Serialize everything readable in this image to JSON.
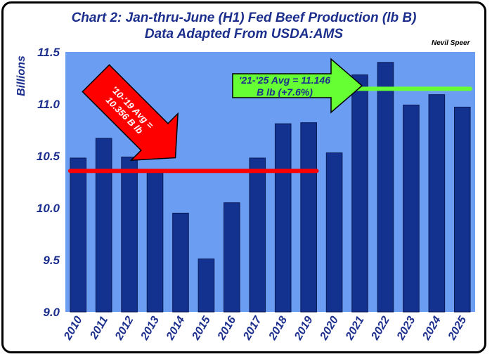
{
  "chart_data": {
    "type": "bar",
    "title_line1": "Chart 2: Jan-thru-June (H1) Fed Beef Production (lb B)",
    "title_line2": "Data Adapted From USDA:AMS",
    "credit": "Nevil Speer",
    "ylabel": "Billions",
    "ylim": [
      9.0,
      11.5
    ],
    "yticks": [
      "9.0",
      "9.5",
      "10.0",
      "10.5",
      "11.0",
      "11.5"
    ],
    "categories": [
      "2010",
      "2011",
      "2012",
      "2013",
      "2014",
      "2015",
      "2016",
      "2017",
      "2018",
      "2019",
      "2020",
      "2021",
      "2022",
      "2023",
      "2024",
      "2025"
    ],
    "values": [
      10.48,
      10.67,
      10.49,
      10.34,
      9.95,
      9.51,
      10.05,
      10.48,
      10.81,
      10.82,
      10.53,
      11.28,
      11.4,
      10.99,
      11.09,
      10.97
    ],
    "grid": false,
    "bar_color": "#13328f",
    "plot_background": "#6b9df2",
    "annotations": [
      {
        "name": "avg-2010-2019",
        "lines": [
          "'10-'19 Avg =",
          "10.356 B lb"
        ],
        "value": 10.356,
        "from": "2010",
        "to": "2019",
        "line_color": "#ff0000",
        "arrow_color": "#ff0000"
      },
      {
        "name": "avg-2021-2025",
        "lines": [
          "'21-'25 Avg = 11.146",
          "B lb (+7.6%)"
        ],
        "value": 11.146,
        "from": "2021",
        "to": "2025",
        "line_color": "#66ff33",
        "arrow_color": "#66ff33"
      }
    ]
  }
}
